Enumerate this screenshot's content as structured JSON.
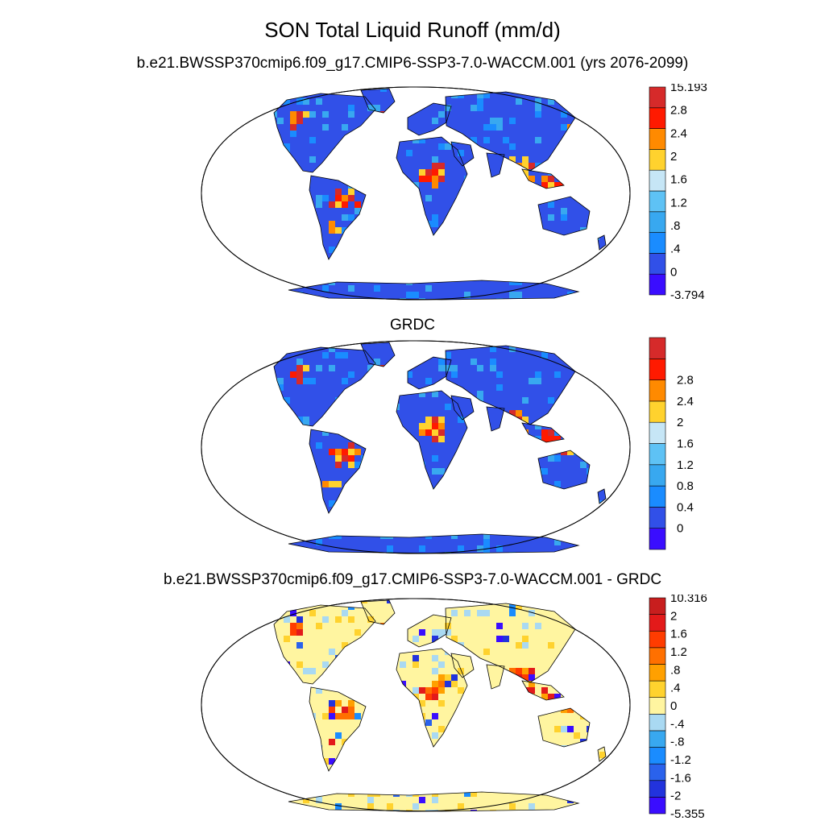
{
  "page": {
    "title": "SON Total Liquid Runoff (mm/d)"
  },
  "panels": [
    {
      "id": "model",
      "title": "b.e21.BWSSP370cmip6.f09_g17.CMIP6-SSP3-7.0-WACCM.001 (yrs 2076-2099)",
      "colorbar": {
        "colors": [
          "#3a0dff",
          "#3150e8",
          "#1a8cff",
          "#38a8f0",
          "#5ec2f5",
          "#c6e6f6",
          "#ffd22e",
          "#ff8a00",
          "#ff1a00",
          "#d62a2a"
        ],
        "labels": [
          "-3.794",
          "0",
          ".4",
          ".8",
          "1.2",
          "1.6",
          "2",
          "2.4",
          "2.8",
          "15.193"
        ],
        "end_labels": true
      }
    },
    {
      "id": "obs",
      "title": "GRDC",
      "colorbar": {
        "colors": [
          "#3a0dff",
          "#3150e8",
          "#1a8cff",
          "#38a8f0",
          "#5ec2f5",
          "#c6e6f6",
          "#ffd22e",
          "#ff8a00",
          "#ff1a00",
          "#d62a2a"
        ],
        "labels": [
          "0",
          "0.4",
          "0.8",
          "1.2",
          "1.6",
          "2",
          "2.4",
          "2.8"
        ],
        "end_labels": false
      }
    },
    {
      "id": "diff",
      "title": "b.e21.BWSSP370cmip6.f09_g17.CMIP6-SSP3-7.0-WACCM.001 - GRDC",
      "colorbar": {
        "colors": [
          "#3a0dff",
          "#2233dd",
          "#2a62ec",
          "#1a8cff",
          "#38a8f0",
          "#a9d9f2",
          "#fff5a0",
          "#ffd22e",
          "#ffa000",
          "#ff7000",
          "#ff3c00",
          "#e31a1a",
          "#c81e1e"
        ],
        "labels": [
          "-5.355",
          "-2",
          "-1.6",
          "-1.2",
          "-.8",
          "-.4",
          "0",
          ".4",
          ".8",
          "1.2",
          "1.6",
          "2",
          "10.316"
        ],
        "end_labels": true
      }
    }
  ]
}
